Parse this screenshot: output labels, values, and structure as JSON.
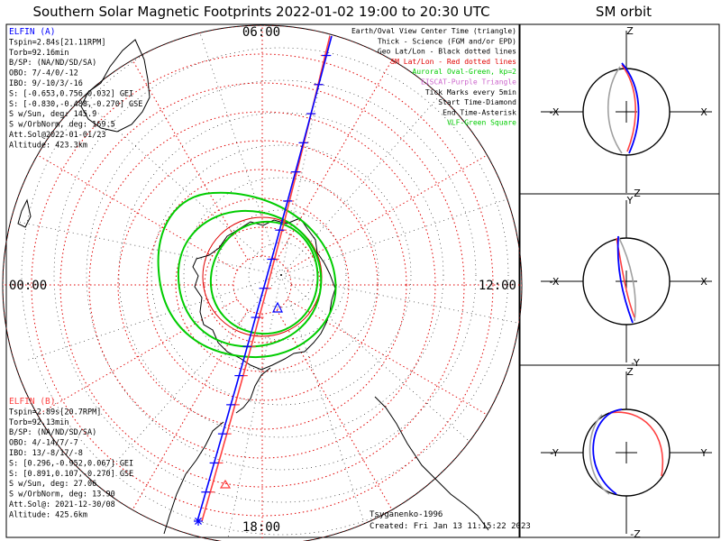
{
  "header": {
    "title": "Southern Solar Magnetic Footprints 2022-01-02 19:00 to 20:30 UTC",
    "orbit_title": "SM orbit"
  },
  "polar_map": {
    "time_labels": {
      "top": "06:00",
      "left": "00:00",
      "right": "12:00",
      "bottom": "18:00"
    },
    "legend": [
      {
        "text": "Earth/Oval View Center Time (triangle)",
        "color": "#000000"
      },
      {
        "text": "Thick - Science (FGM and/or EPD)",
        "color": "#000000"
      },
      {
        "text": "Geo Lat/Lon - Black dotted lines",
        "color": "#000000"
      },
      {
        "text": "SM Lat/Lon - Red dotted lines",
        "color": "#e00000"
      },
      {
        "text": "Auroral Oval-Green, kp=2",
        "color": "#00cc00"
      },
      {
        "text": "EISCAT-Purple Triangle",
        "color": "#cc66cc"
      },
      {
        "text": "Tick Marks every 5min",
        "color": "#000000"
      },
      {
        "text": "Start Time-Diamond",
        "color": "#000000"
      },
      {
        "text": "End Time-Asterisk",
        "color": "#000000"
      },
      {
        "text": "VLF-Green Square",
        "color": "#00cc00"
      }
    ],
    "credits": {
      "author": "Tsyganenko-1996",
      "created": "Created: Fri Jan 13 11:15:22 2023"
    }
  },
  "elfin_a": {
    "name": "ELFIN (A)",
    "color": "#0000ff",
    "lines": [
      "Tspin=2.84s[21.11RPM]",
      "Torb=92.16min",
      "B/SP: (NA/ND/SD/SA)",
      "OBO: 7/-4/0/-12",
      "IBO: 9/-10/3/-16",
      "S: [-0.653,0.756,0.032] GEI",
      "S: [-0.830,-0.488,-0.270] GSE",
      "S w/Sun, deg: 145.9",
      "S w/OrbNorm, deg: 169.5",
      "Att.Sol@2022-01-01/23",
      "Altitude: 423.3km"
    ]
  },
  "elfin_b": {
    "name": "ELFIN (B)",
    "color": "#ff4040",
    "lines": [
      "Tspin=2.89s[20.7RPM]",
      "Torb=92.13min",
      "B/SP: (NA/ND/SD/SA)",
      "OBO: 4/-14/7/-7",
      "IBO: 13/-8/17/-8",
      "S: [0.296,-0.952,0.067] GEI",
      "S: [0.891,0.107,-0.270] GSE",
      "S w/Sun, deg: 27.06",
      "S w/OrbNorm, deg: 13.90",
      "Att.Sol@: 2021-12-30/08",
      "Altitude: 425.6km"
    ]
  },
  "orbit_panels": [
    {
      "top": "Z",
      "bottom": "-Z",
      "left": "-X",
      "right": "X"
    },
    {
      "top": "Y",
      "bottom": "-Y",
      "left": "-X",
      "right": "X"
    },
    {
      "top": "Z",
      "bottom": "-Z",
      "left": "-Y",
      "right": "Y"
    }
  ],
  "colors": {
    "elfin_a_track": "#0000ff",
    "elfin_b_track": "#ff4040",
    "sm_grid": "#e00000",
    "geo_grid": "#000000",
    "auroral_oval": "#00cc00",
    "coastline": "#000000",
    "orbit_other": "#a0a0a0"
  }
}
